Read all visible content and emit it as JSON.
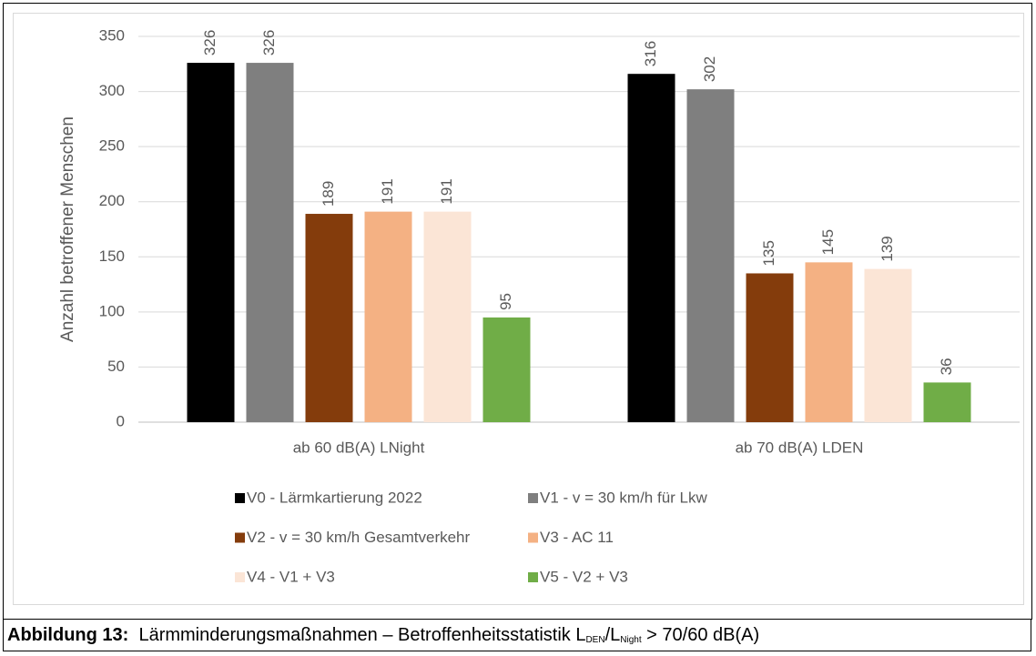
{
  "chart_data": {
    "type": "bar",
    "categories": [
      "ab 60 dB(A) LNight",
      "ab 70 dB(A) LDEN"
    ],
    "y_label": "Anzahl betroffener Menschen",
    "ylim": [
      0,
      350
    ],
    "yticks": [
      0,
      50,
      100,
      150,
      200,
      250,
      300,
      350
    ],
    "grid": true,
    "series": [
      {
        "name": "V0 - Lärmkartierung 2022",
        "color": "#000000",
        "values": [
          326,
          316
        ]
      },
      {
        "name": "V1 - v = 30 km/h für Lkw",
        "color": "#7f7f7f",
        "values": [
          326,
          302
        ]
      },
      {
        "name": "V2 - v = 30 km/h Gesamtverkehr",
        "color": "#843c0c",
        "values": [
          189,
          135
        ]
      },
      {
        "name": "V3 - AC 11",
        "color": "#f4b183",
        "values": [
          191,
          145
        ]
      },
      {
        "name": "V4 - V1 + V3",
        "color": "#fbe5d6",
        "values": [
          191,
          139
        ]
      },
      {
        "name": "V5 - V2 + V3",
        "color": "#70ad47",
        "values": [
          95,
          36
        ]
      }
    ]
  },
  "caption": {
    "label": "Abbildung 13:",
    "text": "Lärmminderungsmaßnahmen – Betroffenheitsstatistik L",
    "sub1": "DEN",
    "mid": "/L",
    "sub2": "Night",
    "end": " > 70/60 dB(A)"
  }
}
